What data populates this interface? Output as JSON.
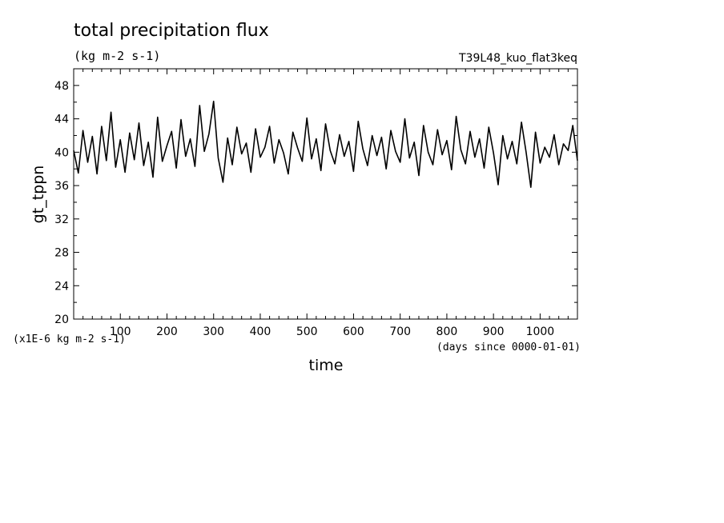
{
  "chart_data": {
    "type": "line",
    "title": "total precipitation flux",
    "subtitle": "(kg m-2 s-1)",
    "experiment": "T39L48_kuo_flat3keq",
    "xlabel": "time",
    "x_unit": "(days since 0000-01-01)",
    "ylabel": "gt_tppn",
    "y_unit": "(x1E-6 kg m-2 s-1)",
    "xlim": [
      0,
      1080
    ],
    "ylim": [
      20,
      50
    ],
    "x_ticks": [
      "100",
      "200",
      "300",
      "400",
      "500",
      "600",
      "700",
      "800",
      "900",
      "1000"
    ],
    "y_ticks": [
      "20",
      "24",
      "28",
      "32",
      "36",
      "40",
      "44",
      "48"
    ],
    "grid": false,
    "series": [
      {
        "x": [
          0,
          10,
          20,
          30,
          40,
          50,
          60,
          70,
          80,
          90,
          100,
          110,
          120,
          130,
          140,
          150,
          160,
          170,
          180,
          190,
          200,
          210,
          220,
          230,
          240,
          250,
          260,
          270,
          280,
          290,
          300,
          310,
          320,
          330,
          340,
          350,
          360,
          370,
          380,
          390,
          400,
          410,
          420,
          430,
          440,
          450,
          460,
          470,
          480,
          490,
          500,
          510,
          520,
          530,
          540,
          550,
          560,
          570,
          580,
          590,
          600,
          610,
          620,
          630,
          640,
          650,
          660,
          670,
          680,
          690,
          700,
          710,
          720,
          730,
          740,
          750,
          760,
          770,
          780,
          790,
          800,
          810,
          820,
          830,
          840,
          850,
          860,
          870,
          880,
          890,
          900,
          910,
          920,
          930,
          940,
          950,
          960,
          970,
          980,
          990,
          1000,
          1010,
          1020,
          1030,
          1040,
          1050,
          1060,
          1070,
          1080
        ],
        "values": [
          40.2,
          37.5,
          42.6,
          38.8,
          41.9,
          37.4,
          43.1,
          39.0,
          44.8,
          38.2,
          41.5,
          37.6,
          42.3,
          39.1,
          43.5,
          38.4,
          41.2,
          37.0,
          44.2,
          38.9,
          40.8,
          42.5,
          38.1,
          43.9,
          39.5,
          41.6,
          38.3,
          45.6,
          40.1,
          42.2,
          46.1,
          39.3,
          36.4,
          41.7,
          38.5,
          43.0,
          39.8,
          41.1,
          37.6,
          42.8,
          39.4,
          40.6,
          43.1,
          38.7,
          41.5,
          39.9,
          37.4,
          42.4,
          40.5,
          38.9,
          44.1,
          39.2,
          41.6,
          37.8,
          43.4,
          40.2,
          38.6,
          42.1,
          39.5,
          41.3,
          37.7,
          43.7,
          40.4,
          38.4,
          42.0,
          39.6,
          41.8,
          38.0,
          42.6,
          40.1,
          38.8,
          44.0,
          39.3,
          41.2,
          37.2,
          43.2,
          40.0,
          38.5,
          42.7,
          39.7,
          41.4,
          37.9,
          44.3,
          40.3,
          38.6,
          42.5,
          39.4,
          41.6,
          38.1,
          43.0,
          39.9,
          36.1,
          42.0,
          39.2,
          41.3,
          38.6,
          43.6,
          40.0,
          35.8,
          42.4,
          38.7,
          40.6,
          39.4,
          42.1,
          38.5,
          41.0,
          40.2,
          43.2,
          39.0
        ]
      }
    ]
  }
}
